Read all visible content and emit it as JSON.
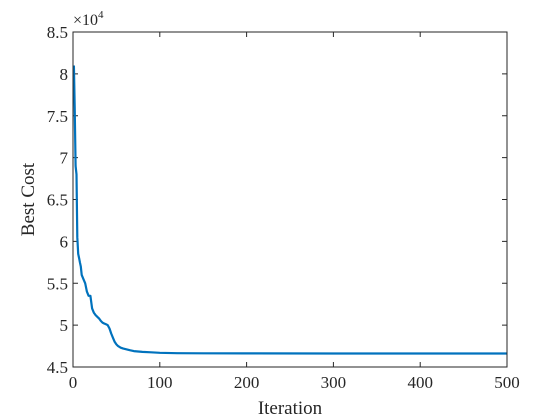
{
  "chart_data": {
    "type": "line",
    "title": "",
    "xlabel": "Iteration",
    "ylabel": "Best Cost",
    "xlim": [
      0,
      500
    ],
    "ylim": [
      4.5,
      8.5
    ],
    "y_multiplier": {
      "base": "×10",
      "exponent": "4"
    },
    "x_ticks": [
      0,
      100,
      200,
      300,
      400,
      500
    ],
    "y_ticks": [
      4.5,
      5,
      5.5,
      6,
      6.5,
      7,
      7.5,
      8,
      8.5
    ],
    "grid": false,
    "line_color": "#0072BD",
    "series": [
      {
        "x": [
          1,
          2,
          3,
          4,
          5,
          6,
          7,
          8,
          9,
          10,
          12,
          14,
          16,
          18,
          20,
          22,
          24,
          26,
          28,
          30,
          32,
          34,
          36,
          38,
          40,
          42,
          44,
          46,
          48,
          50,
          52,
          55,
          58,
          62,
          66,
          70,
          75,
          80,
          90,
          100,
          120,
          150,
          200,
          300,
          400,
          500
        ],
        "y": [
          8.1,
          7.6,
          6.9,
          6.8,
          6.05,
          5.85,
          5.8,
          5.75,
          5.7,
          5.6,
          5.55,
          5.5,
          5.4,
          5.35,
          5.35,
          5.2,
          5.15,
          5.12,
          5.1,
          5.08,
          5.05,
          5.03,
          5.02,
          5.01,
          5.0,
          4.96,
          4.9,
          4.85,
          4.8,
          4.77,
          4.75,
          4.73,
          4.72,
          4.71,
          4.7,
          4.69,
          4.685,
          4.68,
          4.675,
          4.67,
          4.665,
          4.663,
          4.662,
          4.661,
          4.661,
          4.661
        ]
      }
    ]
  }
}
